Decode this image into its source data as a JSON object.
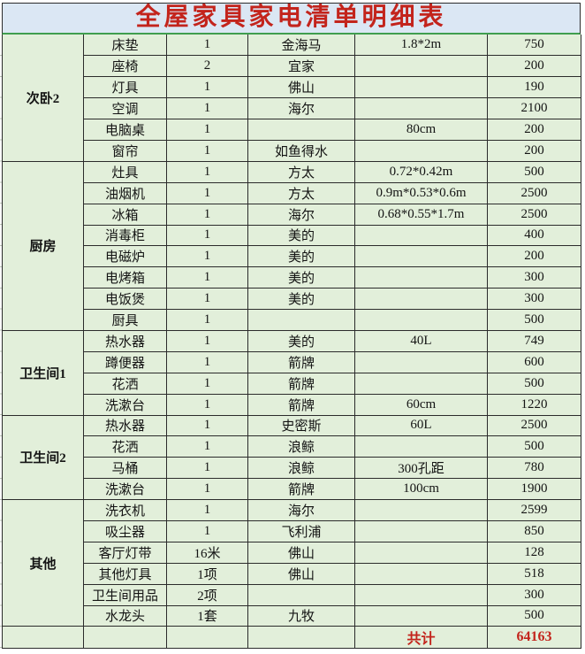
{
  "title": "全屋家具家电清单明细表",
  "colors": {
    "title_background": "#dbe7f4",
    "cell_background": "#e2efda",
    "grid_border": "#2b2b2b",
    "green_divider": "#3f9e4f",
    "accent_red": "#c3241c"
  },
  "columns": [
    "category",
    "item",
    "quantity",
    "brand",
    "size",
    "price"
  ],
  "sections": [
    {
      "category": "次卧2",
      "rows": [
        [
          "床垫",
          "1",
          "金海马",
          "1.8*2m",
          "750"
        ],
        [
          "座椅",
          "2",
          "宜家",
          "",
          "200"
        ],
        [
          "灯具",
          "1",
          "佛山",
          "",
          "190"
        ],
        [
          "空调",
          "1",
          "海尔",
          "",
          "2100"
        ],
        [
          "电脑桌",
          "1",
          "",
          "80cm",
          "200"
        ],
        [
          "窗帘",
          "1",
          "如鱼得水",
          "",
          "200"
        ]
      ]
    },
    {
      "category": "厨房",
      "rows": [
        [
          "灶具",
          "1",
          "方太",
          "0.72*0.42m",
          "500"
        ],
        [
          "油烟机",
          "1",
          "方太",
          "0.9m*0.53*0.6m",
          "2500"
        ],
        [
          "冰箱",
          "1",
          "海尔",
          "0.68*0.55*1.7m",
          "2500"
        ],
        [
          "消毒柜",
          "1",
          "美的",
          "",
          "400"
        ],
        [
          "电磁炉",
          "1",
          "美的",
          "",
          "200"
        ],
        [
          "电烤箱",
          "1",
          "美的",
          "",
          "300"
        ],
        [
          "电饭煲",
          "1",
          "美的",
          "",
          "300"
        ],
        [
          "厨具",
          "1",
          "",
          "",
          "500"
        ]
      ]
    },
    {
      "category": "卫生间1",
      "rows": [
        [
          "热水器",
          "1",
          "美的",
          "40L",
          "749"
        ],
        [
          "蹲便器",
          "1",
          "箭牌",
          "",
          "600"
        ],
        [
          "花洒",
          "1",
          "箭牌",
          "",
          "500"
        ],
        [
          "洗漱台",
          "1",
          "箭牌",
          "60cm",
          "1220"
        ]
      ]
    },
    {
      "category": "卫生间2",
      "rows": [
        [
          "热水器",
          "1",
          "史密斯",
          "60L",
          "2500"
        ],
        [
          "花洒",
          "1",
          "浪鲸",
          "",
          "500"
        ],
        [
          "马桶",
          "1",
          "浪鲸",
          "300孔距",
          "780"
        ],
        [
          "洗漱台",
          "1",
          "箭牌",
          "100cm",
          "1900"
        ]
      ]
    },
    {
      "category": "其他",
      "rows": [
        [
          "洗衣机",
          "1",
          "海尔",
          "",
          "2599"
        ],
        [
          "吸尘器",
          "1",
          "飞利浦",
          "",
          "850"
        ],
        [
          "客厅灯带",
          "16米",
          "佛山",
          "",
          "128"
        ],
        [
          "其他灯具",
          "1项",
          "佛山",
          "",
          "518"
        ],
        [
          "卫生间用品",
          "2项",
          "",
          "",
          "300"
        ],
        [
          "水龙头",
          "1套",
          "九牧",
          "",
          "500"
        ]
      ]
    }
  ],
  "footer": {
    "label": "共计",
    "total": "64163"
  }
}
